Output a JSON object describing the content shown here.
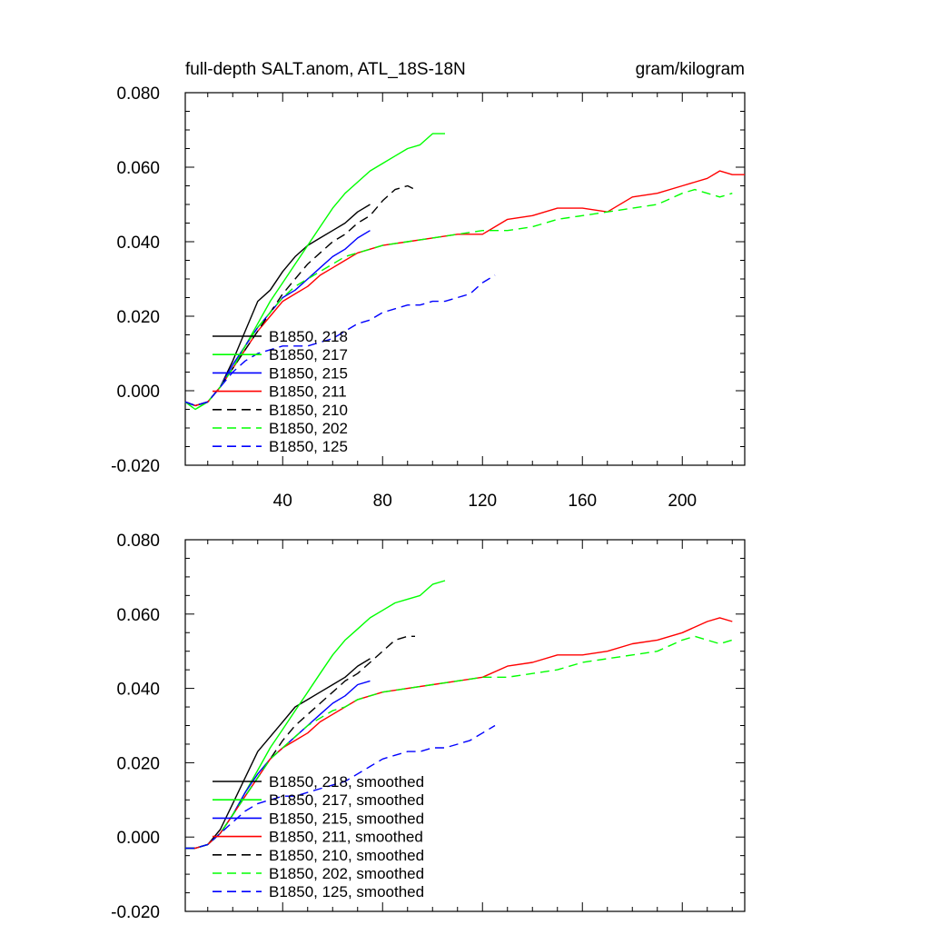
{
  "chart_data": [
    {
      "type": "line",
      "title": "full-depth SALT.anom, ATL_18S-18N",
      "units": "gram/kilogram",
      "xlim": [
        1,
        225
      ],
      "ylim": [
        -0.02,
        0.08
      ],
      "x_ticks": [
        40,
        80,
        120,
        160,
        200
      ],
      "x_tick_labels": [
        "40",
        "80",
        "120",
        "160",
        "200"
      ],
      "y_ticks": [
        -0.02,
        0,
        0.02,
        0.04,
        0.06,
        0.08
      ],
      "y_tick_labels": [
        "-0.020",
        "0.000",
        "0.020",
        "0.040",
        "0.060",
        "0.080"
      ],
      "legend_location": "lower-left",
      "series": [
        {
          "name": "B1850, 218",
          "color": "#000000",
          "dash": "solid",
          "x": [
            1,
            5,
            10,
            15,
            20,
            25,
            30,
            35,
            40,
            45,
            50,
            55,
            60,
            65,
            70,
            75
          ],
          "y": [
            -0.003,
            -0.004,
            -0.003,
            0.001,
            0.008,
            0.016,
            0.024,
            0.027,
            0.032,
            0.036,
            0.039,
            0.041,
            0.043,
            0.045,
            0.048,
            0.05
          ]
        },
        {
          "name": "B1850, 217",
          "color": "#00ff00",
          "dash": "solid",
          "x": [
            1,
            5,
            10,
            15,
            20,
            25,
            30,
            35,
            40,
            45,
            50,
            55,
            60,
            65,
            70,
            75,
            80,
            85,
            90,
            95,
            100,
            105
          ],
          "y": [
            -0.003,
            -0.005,
            -0.003,
            0.001,
            0.006,
            0.012,
            0.018,
            0.024,
            0.029,
            0.034,
            0.039,
            0.044,
            0.049,
            0.053,
            0.056,
            0.059,
            0.061,
            0.063,
            0.065,
            0.066,
            0.069,
            0.069
          ]
        },
        {
          "name": "B1850, 215",
          "color": "#0000ff",
          "dash": "solid",
          "x": [
            1,
            5,
            10,
            15,
            20,
            25,
            30,
            35,
            40,
            45,
            50,
            55,
            60,
            65,
            70,
            75
          ],
          "y": [
            -0.003,
            -0.004,
            -0.003,
            0.001,
            0.007,
            0.012,
            0.017,
            0.021,
            0.025,
            0.027,
            0.03,
            0.033,
            0.036,
            0.038,
            0.041,
            0.043
          ]
        },
        {
          "name": "B1850, 211",
          "color": "#ff0000",
          "dash": "solid",
          "x": [
            1,
            5,
            10,
            15,
            20,
            25,
            30,
            35,
            40,
            45,
            50,
            55,
            60,
            65,
            70,
            80,
            90,
            100,
            110,
            120,
            130,
            140,
            150,
            160,
            170,
            180,
            190,
            200,
            210,
            215,
            220,
            225
          ],
          "y": [
            -0.003,
            -0.004,
            -0.003,
            0.001,
            0.006,
            0.011,
            0.016,
            0.02,
            0.024,
            0.026,
            0.028,
            0.031,
            0.033,
            0.035,
            0.037,
            0.039,
            0.04,
            0.041,
            0.042,
            0.042,
            0.046,
            0.047,
            0.049,
            0.049,
            0.048,
            0.052,
            0.053,
            0.055,
            0.057,
            0.059,
            0.058,
            0.058
          ]
        },
        {
          "name": "B1850, 210",
          "color": "#000000",
          "dash": "dashed",
          "x": [
            1,
            5,
            10,
            15,
            20,
            25,
            30,
            35,
            40,
            45,
            50,
            55,
            60,
            65,
            70,
            75,
            80,
            85,
            90,
            93
          ],
          "y": [
            -0.003,
            -0.004,
            -0.003,
            0.001,
            0.006,
            0.011,
            0.016,
            0.021,
            0.026,
            0.03,
            0.034,
            0.037,
            0.04,
            0.042,
            0.045,
            0.047,
            0.051,
            0.054,
            0.055,
            0.054
          ]
        },
        {
          "name": "B1850, 202",
          "color": "#00ff00",
          "dash": "dashed",
          "x": [
            1,
            5,
            10,
            15,
            20,
            25,
            30,
            35,
            40,
            45,
            50,
            55,
            60,
            65,
            70,
            80,
            90,
            100,
            110,
            120,
            130,
            140,
            150,
            160,
            170,
            180,
            190,
            200,
            205,
            210,
            215,
            220
          ],
          "y": [
            -0.003,
            -0.005,
            -0.003,
            0.001,
            0.006,
            0.012,
            0.017,
            0.021,
            0.025,
            0.028,
            0.03,
            0.032,
            0.034,
            0.036,
            0.037,
            0.039,
            0.04,
            0.041,
            0.042,
            0.043,
            0.043,
            0.044,
            0.046,
            0.047,
            0.048,
            0.049,
            0.05,
            0.053,
            0.054,
            0.053,
            0.052,
            0.053
          ]
        },
        {
          "name": "B1850, 125",
          "color": "#0000ff",
          "dash": "dashed",
          "x": [
            1,
            5,
            10,
            15,
            20,
            25,
            30,
            35,
            40,
            45,
            50,
            55,
            60,
            65,
            70,
            75,
            80,
            85,
            90,
            95,
            100,
            105,
            110,
            115,
            120,
            125
          ],
          "y": [
            -0.003,
            -0.004,
            -0.003,
            0.001,
            0.005,
            0.008,
            0.01,
            0.011,
            0.012,
            0.012,
            0.012,
            0.013,
            0.014,
            0.016,
            0.018,
            0.019,
            0.021,
            0.022,
            0.023,
            0.023,
            0.024,
            0.024,
            0.025,
            0.026,
            0.029,
            0.031
          ]
        }
      ]
    },
    {
      "type": "line",
      "title": "",
      "xlim": [
        1,
        225
      ],
      "ylim": [
        -0.02,
        0.08
      ],
      "x_ticks": [
        40,
        80,
        120,
        160,
        200
      ],
      "y_ticks": [
        -0.02,
        0,
        0.02,
        0.04,
        0.06,
        0.08
      ],
      "y_tick_labels": [
        "-0.020",
        "0.000",
        "0.020",
        "0.040",
        "0.060",
        "0.080"
      ],
      "legend_location": "lower-left",
      "series": [
        {
          "name": "B1850, 218, smoothed",
          "color": "#000000",
          "dash": "solid",
          "x": [
            1,
            5,
            10,
            15,
            20,
            25,
            30,
            35,
            40,
            45,
            50,
            55,
            60,
            65,
            70,
            75
          ],
          "y": [
            -0.003,
            -0.003,
            -0.002,
            0.002,
            0.009,
            0.016,
            0.023,
            0.027,
            0.031,
            0.035,
            0.037,
            0.039,
            0.041,
            0.043,
            0.046,
            0.048
          ]
        },
        {
          "name": "B1850, 217, smoothed",
          "color": "#00ff00",
          "dash": "solid",
          "x": [
            1,
            5,
            10,
            15,
            20,
            25,
            30,
            35,
            40,
            45,
            50,
            55,
            60,
            65,
            70,
            75,
            80,
            85,
            90,
            95,
            100,
            105
          ],
          "y": [
            -0.003,
            -0.003,
            -0.002,
            0.001,
            0.006,
            0.012,
            0.018,
            0.024,
            0.029,
            0.034,
            0.039,
            0.044,
            0.049,
            0.053,
            0.056,
            0.059,
            0.061,
            0.063,
            0.064,
            0.065,
            0.068,
            0.069
          ]
        },
        {
          "name": "B1850, 215, smoothed",
          "color": "#0000ff",
          "dash": "solid",
          "x": [
            1,
            5,
            10,
            15,
            20,
            25,
            30,
            35,
            40,
            45,
            50,
            55,
            60,
            65,
            70,
            75
          ],
          "y": [
            -0.003,
            -0.003,
            -0.002,
            0.001,
            0.006,
            0.012,
            0.017,
            0.021,
            0.024,
            0.027,
            0.03,
            0.033,
            0.036,
            0.038,
            0.041,
            0.042
          ]
        },
        {
          "name": "B1850, 211, smoothed",
          "color": "#ff0000",
          "dash": "solid",
          "x": [
            1,
            5,
            10,
            15,
            20,
            25,
            30,
            35,
            40,
            45,
            50,
            55,
            60,
            65,
            70,
            80,
            90,
            100,
            110,
            120,
            130,
            140,
            150,
            160,
            170,
            180,
            190,
            200,
            210,
            215,
            220
          ],
          "y": [
            -0.003,
            -0.003,
            -0.002,
            0.001,
            0.006,
            0.011,
            0.016,
            0.021,
            0.024,
            0.026,
            0.028,
            0.031,
            0.033,
            0.035,
            0.037,
            0.039,
            0.04,
            0.041,
            0.042,
            0.043,
            0.046,
            0.047,
            0.049,
            0.049,
            0.05,
            0.052,
            0.053,
            0.055,
            0.058,
            0.059,
            0.058
          ]
        },
        {
          "name": "B1850, 210, smoothed",
          "color": "#000000",
          "dash": "dashed",
          "x": [
            1,
            5,
            10,
            15,
            20,
            25,
            30,
            35,
            40,
            45,
            50,
            55,
            60,
            65,
            70,
            75,
            80,
            85,
            90,
            93
          ],
          "y": [
            -0.003,
            -0.003,
            -0.002,
            0.001,
            0.006,
            0.011,
            0.016,
            0.021,
            0.026,
            0.03,
            0.033,
            0.036,
            0.039,
            0.042,
            0.044,
            0.047,
            0.05,
            0.053,
            0.054,
            0.054
          ]
        },
        {
          "name": "B1850, 202, smoothed",
          "color": "#00ff00",
          "dash": "dashed",
          "x": [
            1,
            5,
            10,
            15,
            20,
            25,
            30,
            35,
            40,
            45,
            50,
            55,
            60,
            65,
            70,
            80,
            90,
            100,
            110,
            120,
            130,
            140,
            150,
            160,
            170,
            180,
            190,
            200,
            205,
            210,
            215,
            220
          ],
          "y": [
            -0.003,
            -0.003,
            -0.002,
            0.001,
            0.006,
            0.011,
            0.016,
            0.021,
            0.024,
            0.027,
            0.03,
            0.032,
            0.034,
            0.035,
            0.037,
            0.039,
            0.04,
            0.041,
            0.042,
            0.043,
            0.043,
            0.044,
            0.045,
            0.047,
            0.048,
            0.049,
            0.05,
            0.053,
            0.054,
            0.053,
            0.052,
            0.053
          ]
        },
        {
          "name": "B1850, 125, smoothed",
          "color": "#0000ff",
          "dash": "dashed",
          "x": [
            1,
            5,
            10,
            15,
            20,
            25,
            30,
            35,
            40,
            45,
            50,
            55,
            60,
            65,
            70,
            75,
            80,
            85,
            90,
            95,
            100,
            105,
            110,
            115,
            120,
            125
          ],
          "y": [
            -0.003,
            -0.003,
            -0.002,
            0.001,
            0.004,
            0.007,
            0.009,
            0.01,
            0.011,
            0.011,
            0.012,
            0.013,
            0.014,
            0.015,
            0.017,
            0.019,
            0.021,
            0.022,
            0.023,
            0.023,
            0.024,
            0.024,
            0.025,
            0.026,
            0.028,
            0.03
          ]
        }
      ]
    }
  ]
}
